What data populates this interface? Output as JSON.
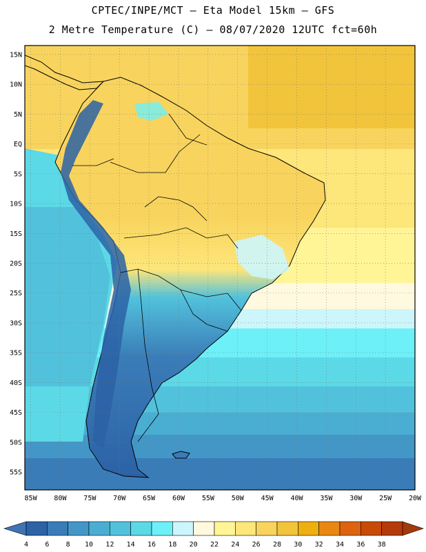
{
  "header": {
    "line1": "CPTEC/INPE/MCT –  Eta Model 15km – GFS",
    "line2": "2 Metre Temperature (C) – 08/07/2020 12UTC fct=60h"
  },
  "map": {
    "lat_labels": [
      "15N",
      "10N",
      "5N",
      "EQ",
      "5S",
      "10S",
      "15S",
      "20S",
      "25S",
      "30S",
      "35S",
      "40S",
      "45S",
      "50S",
      "55S"
    ],
    "lon_labels": [
      "85W",
      "80W",
      "75W",
      "70W",
      "65W",
      "60W",
      "55W",
      "50W",
      "45W",
      "40W",
      "35W",
      "30W",
      "25W",
      "20W"
    ],
    "lat_range": [
      -58,
      16.5
    ],
    "lon_range": [
      -86,
      -20
    ],
    "grid": true
  },
  "legend": {
    "ticks": [
      "4",
      "6",
      "8",
      "10",
      "12",
      "14",
      "16",
      "18",
      "20",
      "22",
      "24",
      "26",
      "28",
      "30",
      "32",
      "34",
      "36",
      "38"
    ],
    "colors": [
      "#2c62a6",
      "#3a7cb8",
      "#4397c6",
      "#4aaed3",
      "#52c2dc",
      "#5cd9e6",
      "#6ef0f8",
      "#ccf6fc",
      "#fff9df",
      "#fff596",
      "#fde67a",
      "#f8d45e",
      "#f1c43c",
      "#eeaf10",
      "#e88812",
      "#dd6310",
      "#c84a08",
      "#b43a0a"
    ],
    "low_color": "#3f73b4",
    "high_color": "#a23a0a"
  }
}
